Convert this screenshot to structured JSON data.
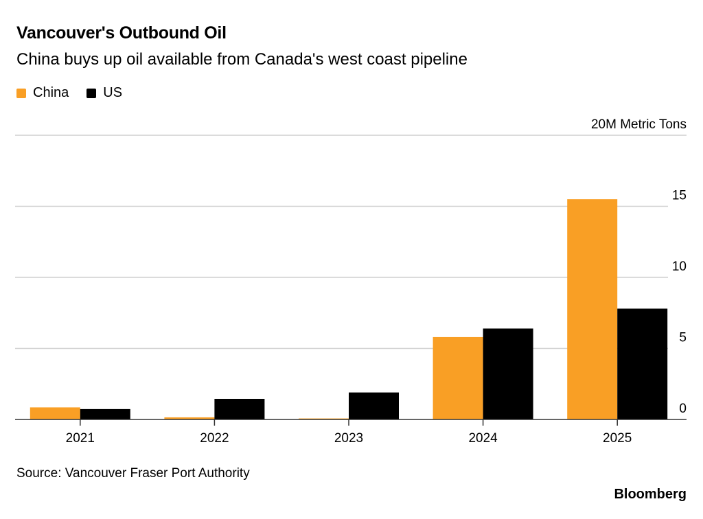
{
  "header": {
    "title": "Vancouver's Outbound Oil",
    "subtitle": "China buys up oil available from Canada's west coast pipeline"
  },
  "footer": {
    "source": "Source: Vancouver Fraser Port Authority",
    "brand": "Bloomberg"
  },
  "chart_data": {
    "type": "bar",
    "title": "Vancouver's Outbound Oil",
    "subtitle": "China buys up oil available from Canada's west coast pipeline",
    "unit_label": "20M Metric Tons",
    "xlabel": "",
    "ylabel": "Metric Tons (millions)",
    "ylim": [
      0,
      20
    ],
    "yticks": [
      0,
      5,
      10,
      15,
      20
    ],
    "ytick_labels": [
      "0",
      "5",
      "10",
      "15",
      "20M Metric Tons"
    ],
    "grid": true,
    "legend_position": "top-left",
    "categories": [
      "2021",
      "2022",
      "2023",
      "2024",
      "2025"
    ],
    "series": [
      {
        "name": "China",
        "color": "#F99F25",
        "values": [
          0.85,
          0.15,
          0.07,
          5.8,
          15.5
        ]
      },
      {
        "name": "US",
        "color": "#000000",
        "values": [
          0.73,
          1.45,
          1.9,
          6.4,
          7.8
        ]
      }
    ]
  }
}
